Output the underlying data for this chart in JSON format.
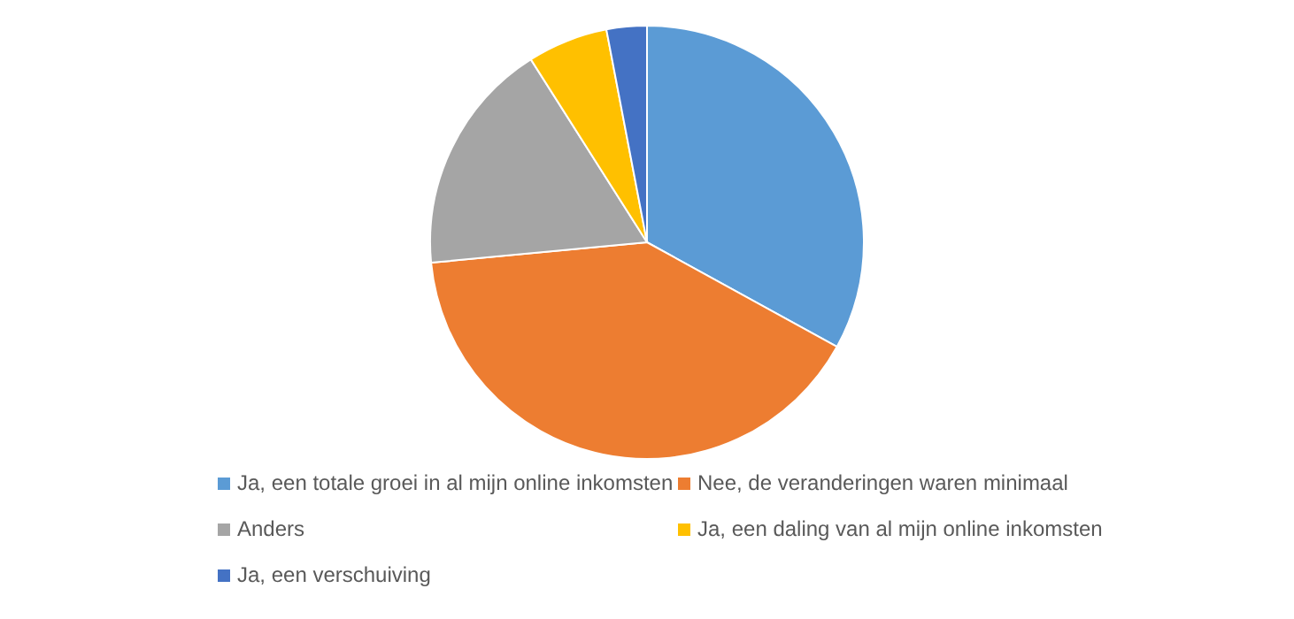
{
  "chart_data": {
    "type": "pie",
    "categories": [
      "Ja, een totale groei in al mijn online inkomsten",
      "Nee, de veranderingen waren minimaal",
      "Anders",
      "Ja, een daling van al mijn online inkomsten",
      "Ja, een verschuiving"
    ],
    "values": [
      33,
      40.5,
      17.5,
      6,
      3
    ],
    "colors": [
      "#5b9bd5",
      "#ed7d31",
      "#a5a5a5",
      "#ffc000",
      "#4472c4"
    ],
    "legend": "bottom"
  }
}
